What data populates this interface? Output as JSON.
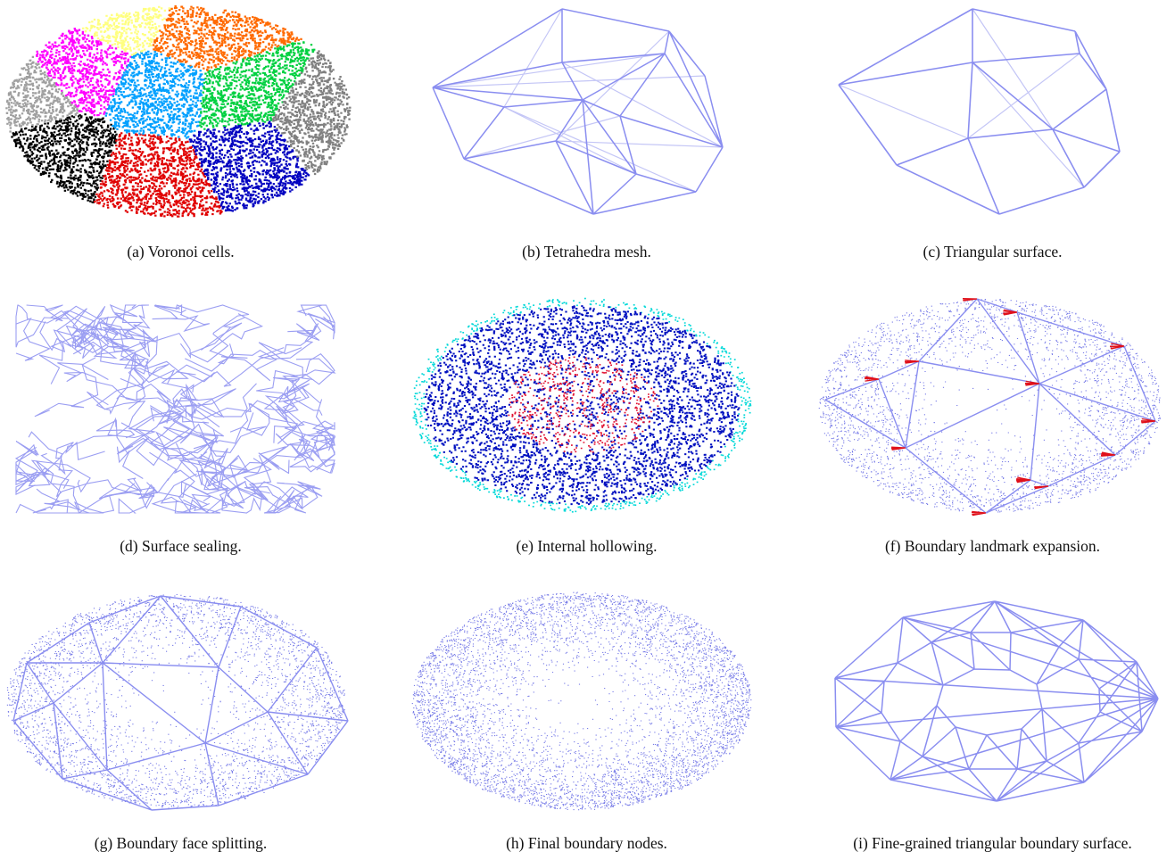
{
  "figure": {
    "panels": [
      {
        "id": "a",
        "caption": "(a)  Voronoi cells.",
        "kind": "voronoi-cells"
      },
      {
        "id": "b",
        "caption": "(b)  Tetrahedra mesh.",
        "kind": "tetrahedra-mesh"
      },
      {
        "id": "c",
        "caption": "(c)  Triangular surface.",
        "kind": "triangular-surface"
      },
      {
        "id": "d",
        "caption": "(d)  Surface sealing.",
        "kind": "surface-sealing"
      },
      {
        "id": "e",
        "caption": "(e)  Internal hollowing.",
        "kind": "internal-hollowing"
      },
      {
        "id": "f",
        "caption": "(f)  Boundary landmark expansion.",
        "kind": "landmark-expansion"
      },
      {
        "id": "g",
        "caption": "(g)  Boundary face splitting.",
        "kind": "face-splitting"
      },
      {
        "id": "h",
        "caption": "(h)  Final boundary nodes.",
        "kind": "final-nodes"
      },
      {
        "id": "i",
        "caption": "(i)  Fine-grained triangular boundary surface.",
        "kind": "fine-surface"
      }
    ],
    "colors": {
      "mesh_edge": "#8a8ef0",
      "mesh_edge_faint": "#c4c6f6",
      "node_dot": "#7a7ee8",
      "landmark_arrow": "#e0101a",
      "voronoi": [
        "#000000",
        "#e00000",
        "#ff6a00",
        "#ff00ff",
        "#00a0ff",
        "#00d040",
        "#0000c0",
        "#808080",
        "#ffff80",
        "#a0a0a0"
      ],
      "hollow_outer": "#00d8d8",
      "hollow_mid": "#0010c0",
      "hollow_inner": "#e01030"
    }
  }
}
